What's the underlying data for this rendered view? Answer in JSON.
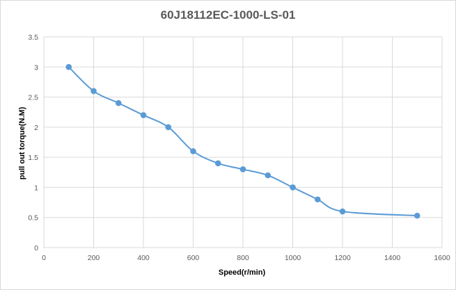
{
  "chart_data": {
    "type": "line",
    "title": "60J18112EC-1000-LS-01",
    "xlabel": "Speed(r/min)",
    "ylabel": "pull out torque(N.M)",
    "xlim": [
      0,
      1600
    ],
    "ylim": [
      0,
      3.5
    ],
    "xticks": [
      "0",
      "200",
      "400",
      "600",
      "800",
      "1000",
      "1200",
      "1400",
      "1600"
    ],
    "yticks": [
      "0",
      "0.5",
      "1",
      "1.5",
      "2",
      "2.5",
      "3",
      "3.5"
    ],
    "grid": true,
    "smooth": true,
    "series": [
      {
        "color": "#5b9bd5",
        "x": [
          100,
          200,
          300,
          400,
          500,
          600,
          700,
          800,
          900,
          1000,
          1100,
          1200,
          1500
        ],
        "y": [
          3.0,
          2.6,
          2.4,
          2.2,
          2.0,
          1.6,
          1.4,
          1.3,
          1.2,
          1.0,
          0.8,
          0.6,
          0.53
        ]
      }
    ]
  },
  "colors": {
    "series": "#5b9bd5",
    "grid": "#d9d9d9",
    "title": "#595959"
  }
}
